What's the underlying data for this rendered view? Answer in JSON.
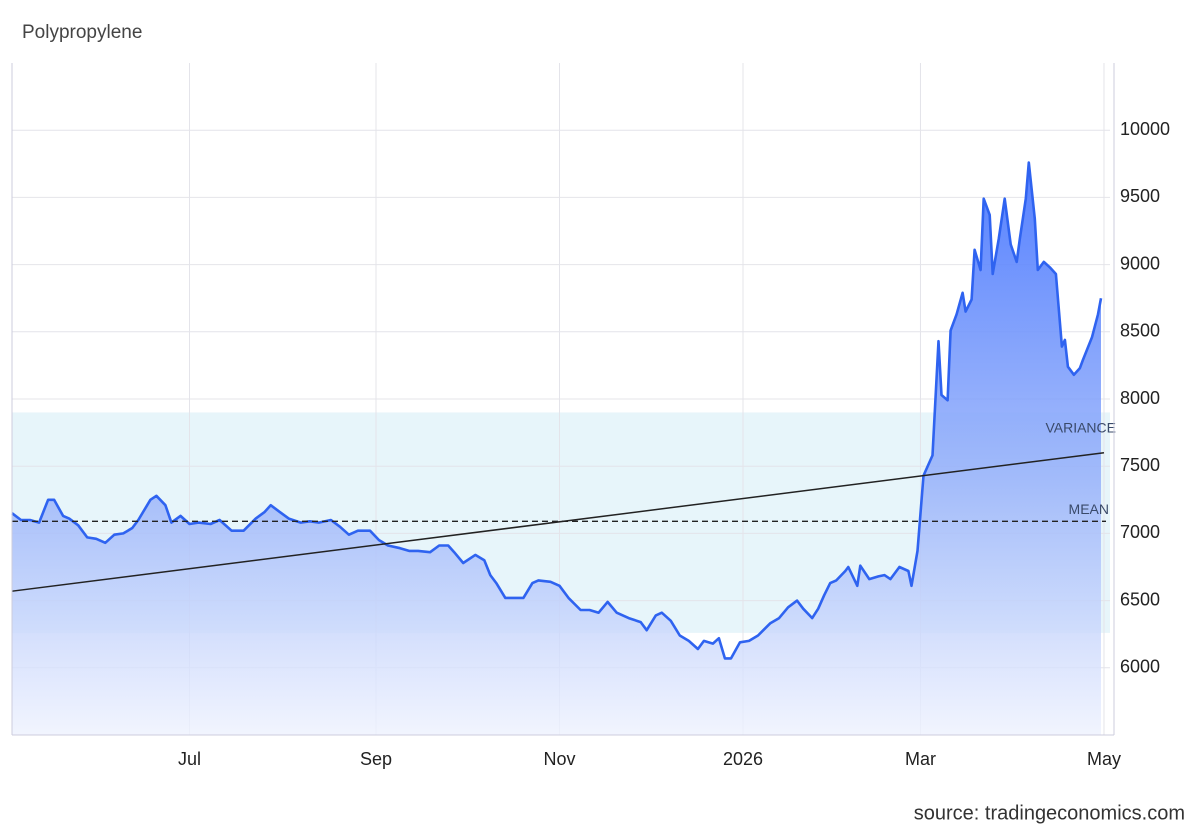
{
  "chart_data": {
    "type": "area",
    "title": "Polypropylene",
    "source": "source: tradingeconomics.com",
    "x": [
      123,
      126,
      129,
      132,
      135,
      137,
      140,
      142,
      145,
      148,
      151,
      154,
      157,
      160,
      163,
      165,
      169,
      171,
      174,
      176,
      179,
      182,
      185,
      189,
      192,
      196,
      200,
      204,
      207,
      209,
      212,
      215,
      219,
      222,
      225,
      229,
      232,
      235,
      238,
      242,
      245,
      248,
      252,
      255,
      258,
      262,
      265,
      268,
      270,
      273,
      277,
      280,
      282,
      284,
      287,
      290,
      293,
      296,
      298,
      302,
      305,
      308,
      312,
      315,
      318,
      321,
      324,
      328,
      332,
      334,
      337,
      339,
      342,
      345,
      348,
      351,
      353,
      356,
      358,
      360,
      362,
      365,
      368,
      371,
      375,
      378,
      381,
      384,
      386,
      389,
      391,
      393,
      395,
      397,
      400,
      401,
      404,
      405,
      408,
      411,
      413,
      415,
      418,
      421,
      422,
      424,
      426,
      429,
      431,
      432,
      434,
      435,
      437,
      439,
      440,
      442,
      443,
      445,
      446,
      448,
      449,
      451,
      453,
      455,
      457,
      458,
      460,
      461,
      463,
      464,
      466,
      468,
      470,
      472,
      473,
      474,
      476,
      478,
      479,
      482,
      484,
      485
    ],
    "series": [
      {
        "name": "Polypropylene",
        "color": "#2f63f0",
        "values": [
          7150,
          7100,
          7100,
          7080,
          7250,
          7250,
          7130,
          7110,
          7060,
          6970,
          6960,
          6930,
          6990,
          7000,
          7040,
          7100,
          7250,
          7280,
          7210,
          7080,
          7130,
          7070,
          7080,
          7070,
          7100,
          7020,
          7020,
          7110,
          7160,
          7210,
          7160,
          7110,
          7080,
          7090,
          7080,
          7100,
          7050,
          6990,
          7020,
          7020,
          6950,
          6910,
          6890,
          6870,
          6870,
          6860,
          6910,
          6910,
          6860,
          6780,
          6840,
          6800,
          6690,
          6630,
          6520,
          6520,
          6520,
          6630,
          6650,
          6640,
          6610,
          6520,
          6430,
          6430,
          6410,
          6490,
          6410,
          6370,
          6340,
          6280,
          6390,
          6410,
          6350,
          6240,
          6200,
          6140,
          6200,
          6180,
          6220,
          6070,
          6070,
          6190,
          6200,
          6240,
          6330,
          6370,
          6450,
          6500,
          6440,
          6370,
          6440,
          6540,
          6630,
          6650,
          6720,
          6750,
          6610,
          6760,
          6660,
          6680,
          6690,
          6660,
          6750,
          6720,
          6610,
          6870,
          7430,
          7580,
          8430,
          8030,
          7990,
          8510,
          8630,
          8790,
          8650,
          8740,
          9110,
          8960,
          9490,
          9370,
          8930,
          9190,
          9490,
          9150,
          9020,
          9190,
          9490,
          9760,
          9340,
          8960,
          9020,
          8980,
          8930,
          8390,
          8440,
          8240,
          8180,
          8230,
          8290,
          8460,
          8630,
          8750
        ]
      }
    ],
    "mean": 7090,
    "mean_label": "MEAN",
    "variance_band": [
      6260,
      7900
    ],
    "variance_label": "VARIANCE",
    "trend": {
      "x": [
        123,
        486
      ],
      "values": [
        6570,
        7600
      ]
    },
    "xlim": [
      123,
      488
    ],
    "xticks": [
      {
        "value": 182,
        "label": "Jul"
      },
      {
        "value": 244,
        "label": "Sep"
      },
      {
        "value": 305,
        "label": "Nov"
      },
      {
        "value": 366,
        "label": "2026"
      },
      {
        "value": 425,
        "label": "Mar"
      },
      {
        "value": 486,
        "label": "May"
      }
    ],
    "ylim": [
      5500,
      10500
    ],
    "yticks": [
      6000,
      6500,
      7000,
      7500,
      8000,
      8500,
      9000,
      9500,
      10000
    ],
    "grid": true
  }
}
